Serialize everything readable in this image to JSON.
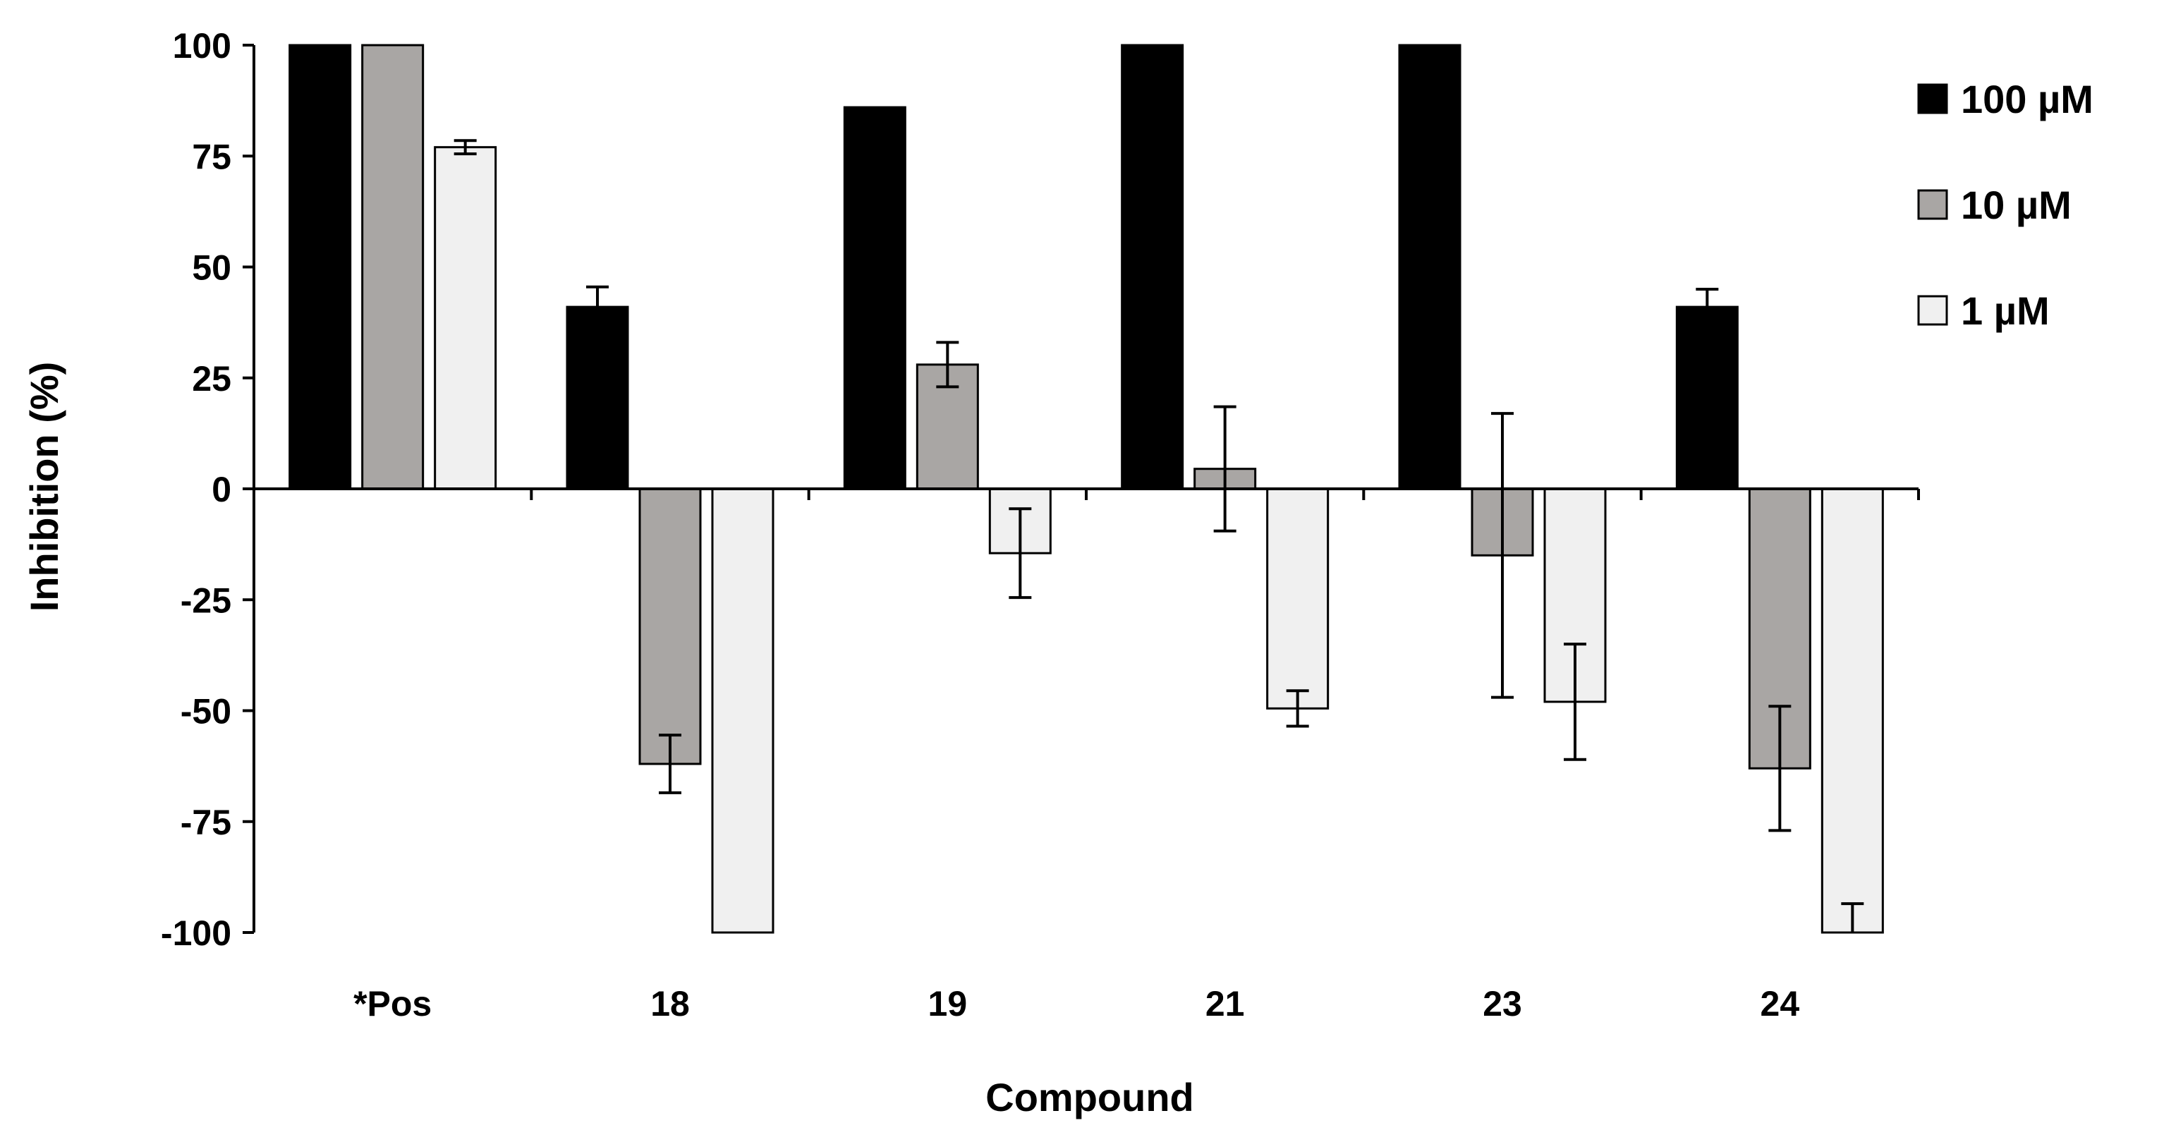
{
  "chart_data": {
    "type": "bar",
    "xlabel": "Compound",
    "ylabel": "Inhibition (%)",
    "ylim": [
      -100,
      100
    ],
    "yticks": [
      100,
      75,
      50,
      25,
      0,
      -25,
      -50,
      -75,
      -100
    ],
    "categories": [
      "*Pos",
      "18",
      "19",
      "21",
      "23",
      "24"
    ],
    "legend_position": "right",
    "series": [
      {
        "name": "100 µM",
        "color": "#000000",
        "values": [
          100,
          41,
          86,
          100,
          100,
          41
        ],
        "errors": [
          0,
          4.5,
          0,
          0,
          0,
          4
        ]
      },
      {
        "name": "10 µM",
        "color": "#a9a6a4",
        "values": [
          100,
          -62,
          28,
          4.5,
          -15,
          -63
        ],
        "errors": [
          0,
          6.5,
          5,
          14,
          32,
          14
        ]
      },
      {
        "name": "1 µM",
        "color": "#f0f0f0",
        "values": [
          77,
          -100,
          -14.5,
          -49.5,
          -48,
          -100
        ],
        "errors": [
          1.5,
          0,
          10,
          4,
          13,
          6.5
        ]
      }
    ]
  }
}
